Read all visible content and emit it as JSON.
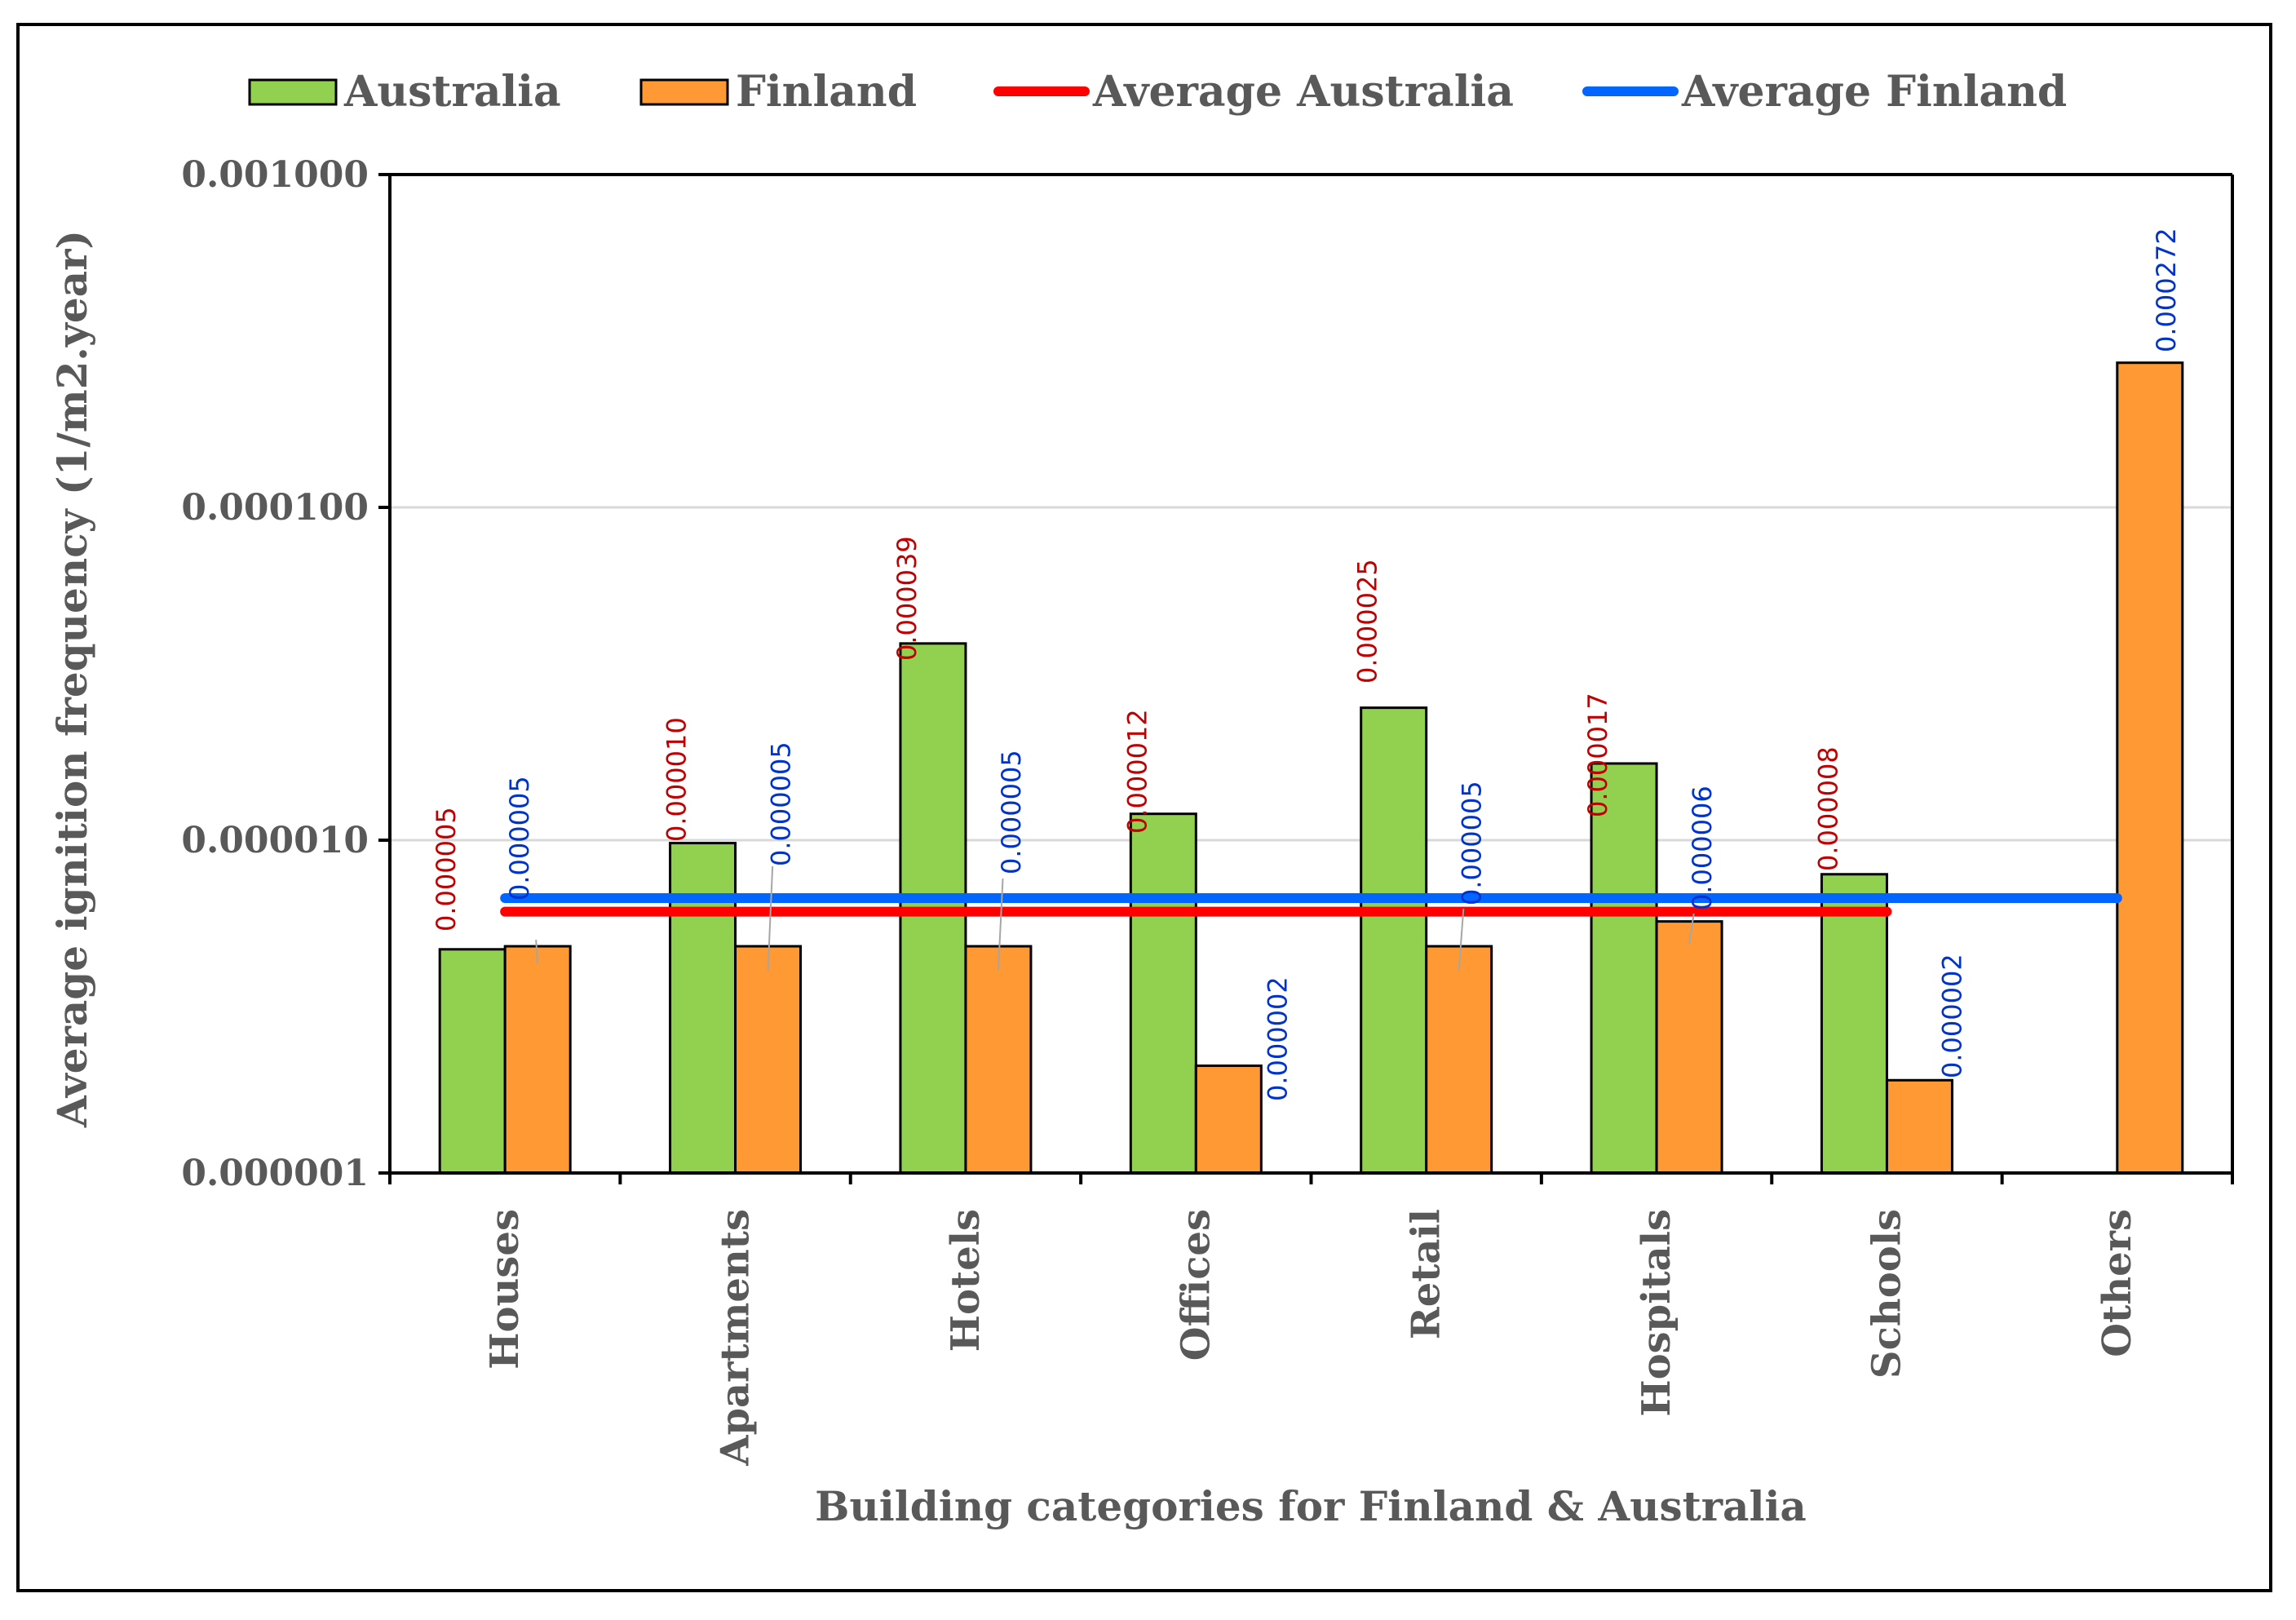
{
  "chart_data": {
    "type": "bar",
    "title": "",
    "xlabel": "Building categories for Finland & Australia",
    "ylabel": "Average ignition frequency (1/m2.year)",
    "yscale": "log",
    "ylim": [
      1e-06,
      0.001
    ],
    "yticks": [
      {
        "value": 1e-06,
        "label": "0.000001"
      },
      {
        "value": 1e-05,
        "label": "0.000010"
      },
      {
        "value": 0.0001,
        "label": "0.000100"
      },
      {
        "value": 0.001,
        "label": "0.001000"
      }
    ],
    "categories": [
      "Houses",
      "Apartments",
      "Hotels",
      "Offices",
      "Retail",
      "Hospitals",
      "Schools",
      "Others"
    ],
    "series": [
      {
        "name": "Australia",
        "color": "#92d050",
        "values": [
          4.7e-06,
          9.8e-06,
          3.9e-05,
          1.2e-05,
          2.5e-05,
          1.7e-05,
          7.9e-06,
          null
        ],
        "labels": [
          "0.000005",
          "0.000010",
          "0.000039",
          "0.000012",
          "0.000025",
          "0.000017",
          "0.000008",
          null
        ],
        "label_color": "#c00000"
      },
      {
        "name": "Finland",
        "color": "#ff9933",
        "values": [
          4.8e-06,
          4.8e-06,
          4.8e-06,
          2.1e-06,
          4.8e-06,
          5.7e-06,
          1.9e-06,
          0.000272
        ],
        "labels": [
          "0.000005",
          "0.000005",
          "0.000005",
          "0.000002",
          "0.000005",
          "0.000006",
          "0.000002",
          "0.000272"
        ],
        "label_color": "#0033cc"
      }
    ],
    "lines": [
      {
        "name": "Average Australia",
        "color": "#ff0000",
        "value": 6.1e-06,
        "from_category": "Houses",
        "to_category": "Schools"
      },
      {
        "name": "Average Finland",
        "color": "#0066ff",
        "value": 6.7e-06,
        "from_category": "Houses",
        "to_category": "Others"
      }
    ],
    "legend": {
      "position": "top",
      "items": [
        "Australia",
        "Finland",
        "Average Australia",
        "Average Finland"
      ]
    },
    "grid": true
  }
}
